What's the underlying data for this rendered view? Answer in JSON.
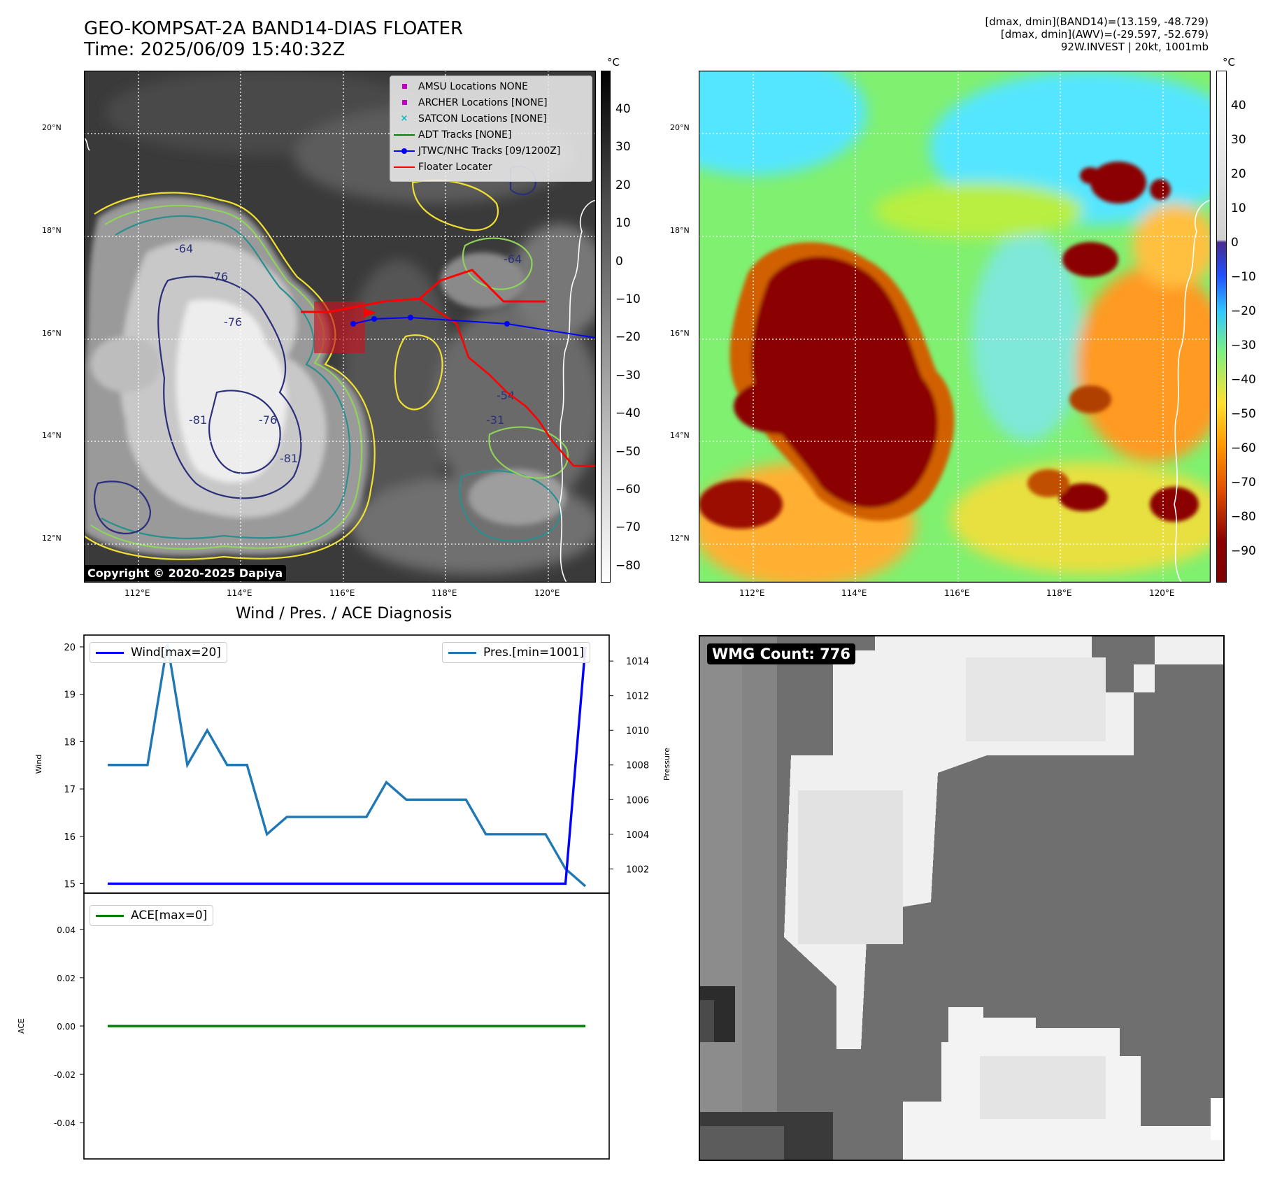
{
  "header": {
    "title_line1": "GEO-KOMPSAT-2A BAND14-DIAS FLOATER",
    "title_line2": "Time: 2025/06/09 15:40:32Z",
    "info_line1": "[dmax, dmin](BAND14)=(13.159, -48.729)",
    "info_line2": "[dmax, dmin](AWV)=(-29.597, -52.679)",
    "info_line3": "92W.INVEST | 20kt, 1001mb"
  },
  "ir_panel": {
    "lat_labels": [
      "20°N",
      "18°N",
      "16°N",
      "14°N",
      "12°N"
    ],
    "lon_labels": [
      "112°E",
      "114°E",
      "116°E",
      "118°E",
      "120°E"
    ],
    "colorbar_unit": "°C",
    "colorbar_ticks": [
      "40",
      "30",
      "20",
      "10",
      "0",
      "−10",
      "−20",
      "−30",
      "−40",
      "−50",
      "−60",
      "−70",
      "−80"
    ],
    "contour_labels": [
      "-64",
      "-76",
      "-81",
      "-54",
      "-31",
      "-76",
      "-64",
      "-76",
      "-81"
    ],
    "copyright": "Copyright © 2020-2025 Dapiya",
    "legend": [
      {
        "label": "AMSU Locations NONE",
        "color": "#bf00bf",
        "marker": "square"
      },
      {
        "label": "ARCHER Locations [NONE]",
        "color": "#bf00bf",
        "marker": "square"
      },
      {
        "label": "SATCON Locations [NONE]",
        "color": "#00bfbf",
        "marker": "x"
      },
      {
        "label": "ADT Tracks [NONE]",
        "color": "#008000",
        "marker": "line"
      },
      {
        "label": "JTWC/NHC Tracks [09/1200Z]",
        "color": "#0000ff",
        "marker": "line-dot"
      },
      {
        "label": "Floater Locater",
        "color": "#ff0000",
        "marker": "line"
      }
    ]
  },
  "awv_panel": {
    "lat_labels": [
      "20°N",
      "18°N",
      "16°N",
      "14°N",
      "12°N"
    ],
    "lon_labels": [
      "112°E",
      "114°E",
      "116°E",
      "118°E",
      "120°E"
    ],
    "colorbar_unit": "°C",
    "colorbar_ticks": [
      "40",
      "30",
      "20",
      "10",
      "0",
      "−10",
      "−20",
      "−30",
      "−40",
      "−50",
      "−60",
      "−70",
      "−80",
      "−90"
    ]
  },
  "diagnosis": {
    "title": "Wind / Pres. / ACE Diagnosis",
    "wind_legend": "Wind[max=20]",
    "pres_legend": "Pres.[min=1001]",
    "ace_legend": "ACE[max=0]",
    "wind_axis_label": "Wind",
    "pres_axis_label": "Pressure",
    "ace_axis_label": "ACE"
  },
  "wmg_panel": {
    "label": "WMG Count: 776"
  },
  "colors": {
    "wind": "#0000ff",
    "pressure": "#1f77b4",
    "ace": "#008000",
    "jtwc_track": "#0000ff",
    "floater": "#ff0000",
    "contour_yellow": "#f0e030",
    "contour_green": "#8fd35a",
    "contour_teal": "#2a8f8f",
    "contour_navy": "#2b2f7a"
  },
  "chart_data": [
    {
      "type": "line",
      "title": "Wind / Pres. / ACE Diagnosis",
      "ylabel": "Wind",
      "ylabel_right": "Pressure",
      "x": [
        0,
        1,
        2,
        3,
        4,
        5,
        6,
        7,
        8,
        9,
        10,
        11,
        12,
        13,
        14,
        15,
        16,
        17,
        18,
        19,
        20,
        21,
        22,
        23,
        24
      ],
      "ylim": [
        14.8,
        20.25
      ],
      "ylim_right": [
        1000.6,
        1015.5
      ],
      "series": [
        {
          "name": "Wind[max=20]",
          "axis": "left",
          "color": "#0000ff",
          "values": [
            15,
            15,
            15,
            15,
            15,
            15,
            15,
            15,
            15,
            15,
            15,
            15,
            15,
            15,
            15,
            15,
            15,
            15,
            15,
            15,
            15,
            15,
            15,
            15,
            20
          ]
        },
        {
          "name": "Pres.[min=1001]",
          "axis": "right",
          "color": "#1f77b4",
          "values": [
            1008,
            1008,
            1008,
            1015,
            1008,
            1010,
            1008,
            1008,
            1004,
            1005,
            1005,
            1005,
            1005,
            1005,
            1007,
            1006,
            1006,
            1006,
            1006,
            1004,
            1004,
            1004,
            1004,
            1002,
            1001
          ]
        }
      ]
    },
    {
      "type": "line",
      "ylabel": "ACE",
      "x": [
        0,
        1,
        2,
        3,
        4,
        5,
        6,
        7,
        8,
        9,
        10,
        11,
        12,
        13,
        14,
        15,
        16,
        17,
        18,
        19,
        20,
        21,
        22,
        23,
        24
      ],
      "ylim": [
        -0.055,
        0.055
      ],
      "yticks": [
        -0.04,
        -0.02,
        0.0,
        0.02,
        0.04
      ],
      "series": [
        {
          "name": "ACE[max=0]",
          "color": "#008000",
          "values": [
            0,
            0,
            0,
            0,
            0,
            0,
            0,
            0,
            0,
            0,
            0,
            0,
            0,
            0,
            0,
            0,
            0,
            0,
            0,
            0,
            0,
            0,
            0,
            0,
            0
          ]
        }
      ]
    }
  ]
}
